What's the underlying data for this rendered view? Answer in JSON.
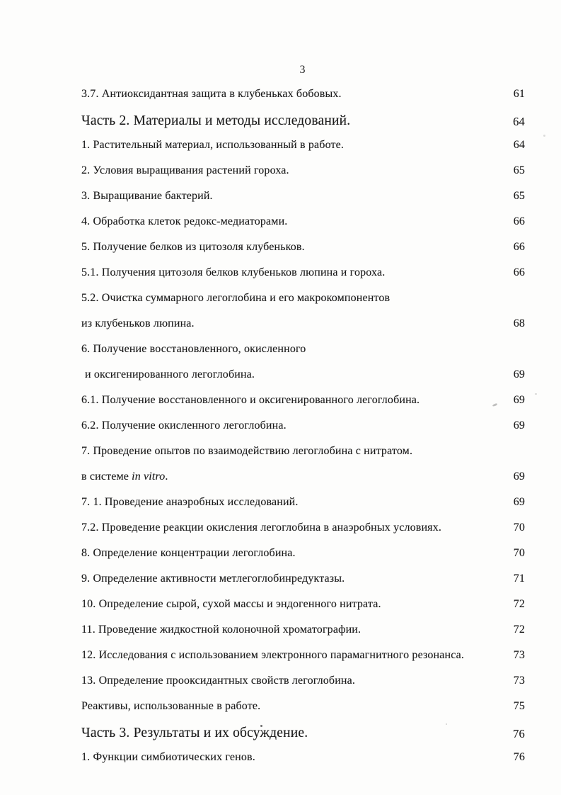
{
  "document": {
    "page_header_number": "3",
    "toc_entries": [
      {
        "type": "entry",
        "text": "3.7. Антиоксидантная защита в клубеньках бобовых.",
        "page": "61"
      },
      {
        "type": "part",
        "text": "Часть 2. Материалы и методы исследований.",
        "page": "64"
      },
      {
        "type": "entry",
        "text": "1. Растительный материал, использованный в работе.",
        "page": "64"
      },
      {
        "type": "entry",
        "text": "2. Условия выращивания растений гороха.",
        "page": "65"
      },
      {
        "type": "entry",
        "text": "3. Выращивание бактерий.",
        "page": "65"
      },
      {
        "type": "entry",
        "text": "4. Обработка клеток редокс-медиаторами.",
        "page": "66"
      },
      {
        "type": "entry",
        "text": "5. Получение белков из цитозоля клубеньков.",
        "page": "66"
      },
      {
        "type": "entry",
        "text": "5.1. Получения цитозоля белков клубеньков люпина и гороха.",
        "page": "66"
      },
      {
        "type": "entry",
        "text": "5.2. Очистка суммарного легоглобина и его макрокомпонентов",
        "page": ""
      },
      {
        "type": "entry",
        "text": "из клубеньков люпина.",
        "page": "68"
      },
      {
        "type": "entry",
        "text": "6. Получение восстановленного, окисленного",
        "page": ""
      },
      {
        "type": "entry",
        "indent": true,
        "text": "и оксигенированного легоглобина.",
        "page": "69"
      },
      {
        "type": "entry",
        "text": "6.1. Получение восстановленного и оксигенированного легоглобина.",
        "page": "69"
      },
      {
        "type": "entry",
        "text": "6.2. Получение окисленного легоглобина.",
        "page": "69"
      },
      {
        "type": "entry",
        "text": "7. Проведение опытов по взаимодействию легоглобина с нитратом.",
        "page": ""
      },
      {
        "type": "entry",
        "runs": [
          {
            "t": "в системе ",
            "italic": false
          },
          {
            "t": "in vitro",
            "italic": true
          },
          {
            "t": ".",
            "italic": false
          }
        ],
        "page": "69"
      },
      {
        "type": "entry",
        "text": "7. 1. Проведение анаэробных исследований.",
        "page": "69"
      },
      {
        "type": "entry",
        "text": "7.2. Проведение реакции окисления легоглобина в анаэробных условиях.",
        "page": "70"
      },
      {
        "type": "entry",
        "text": "8. Определение концентрации легоглобина.",
        "page": "70"
      },
      {
        "type": "entry",
        "text": "9. Определение активности метлегоглобинредуктазы.",
        "page": "71"
      },
      {
        "type": "entry",
        "text": "10. Определение сырой, сухой массы и эндогенного нитрата.",
        "page": "72"
      },
      {
        "type": "entry",
        "text": "11. Проведение жидкостной колоночной хроматографии.",
        "page": "72"
      },
      {
        "type": "entry",
        "text": "12. Исследования с использованием электронного парамагнитного резонанса.",
        "page": "73"
      },
      {
        "type": "entry",
        "text": "13. Определение прооксидантных свойств легоглобина.",
        "page": "73"
      },
      {
        "type": "entry",
        "text": "Реактивы, использованные в работе.",
        "page": "75"
      },
      {
        "type": "part",
        "text": "Часть 3. Результаты и их обсуждение.",
        "page": "76"
      },
      {
        "type": "entry",
        "text": "1. Функции симбиотических генов.",
        "page": "76"
      }
    ]
  }
}
